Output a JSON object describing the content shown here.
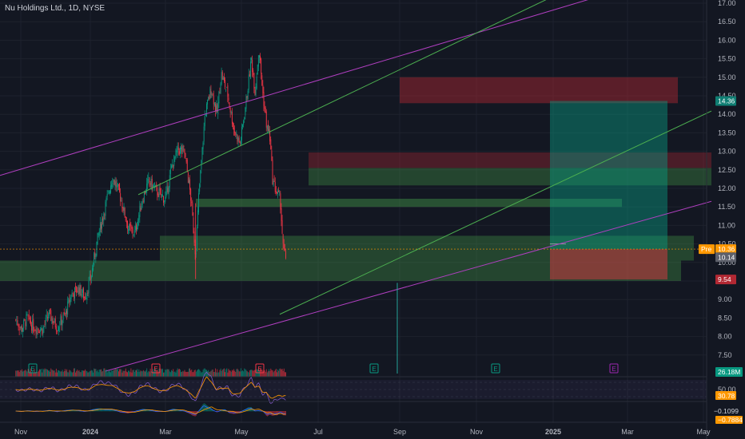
{
  "chart_data": {
    "type": "candlestick",
    "title": "Nu Holdings Ltd., 1D, NYSE",
    "x_ticks": [
      "Nov",
      "2024",
      "Mar",
      "May",
      "Jul",
      "Sep",
      "Nov",
      "2025",
      "Mar",
      "May"
    ],
    "y_ticks": [
      "17.00",
      "16.50",
      "16.00",
      "15.50",
      "15.00",
      "14.50",
      "14.00",
      "13.50",
      "13.00",
      "12.50",
      "12.00",
      "11.50",
      "11.00",
      "10.50",
      "10.00",
      "9.50",
      "9.00",
      "8.50",
      "8.00",
      "7.50"
    ],
    "ylim": [
      7.2,
      17.2
    ],
    "price_labels": [
      {
        "text": "14.36",
        "value": 14.36,
        "color": "#0f7e73"
      },
      {
        "text": "10.36",
        "value": 10.36,
        "color": "#ff9800",
        "prefix": "Pre"
      },
      {
        "text": "10.14",
        "value": 10.14,
        "color": "#5d606b"
      },
      {
        "text": "9.54",
        "value": 9.54,
        "color": "#b22833"
      }
    ],
    "anchors": [
      [
        "2023-10-23",
        8.45
      ],
      [
        "2023-11-01",
        8.2
      ],
      [
        "2023-11-10",
        8.5
      ],
      [
        "2023-11-20",
        8.25
      ],
      [
        "2023-12-05",
        8.2
      ],
      [
        "2023-12-15",
        8.6
      ],
      [
        "2023-12-28",
        8.25
      ],
      [
        "2024-01-10",
        8.6
      ],
      [
        "2024-01-20",
        9.15
      ],
      [
        "2024-02-01",
        9.3
      ],
      [
        "2024-02-10",
        9.05
      ],
      [
        "2024-02-20",
        9.6
      ],
      [
        "2024-03-01",
        10.6
      ],
      [
        "2024-03-12",
        11.4
      ],
      [
        "2024-03-25",
        12.3
      ],
      [
        "2024-04-05",
        11.9
      ],
      [
        "2024-04-20",
        10.9
      ],
      [
        "2024-04-30",
        10.8
      ],
      [
        "2024-05-12",
        11.7
      ],
      [
        "2024-05-22",
        12.2
      ],
      [
        "2024-06-05",
        11.9
      ],
      [
        "2024-06-18",
        11.7
      ],
      [
        "2024-06-28",
        12.6
      ],
      [
        "2024-07-08",
        13.05
      ],
      [
        "2024-07-18",
        13.0
      ],
      [
        "2024-07-28",
        11.8
      ],
      [
        "2024-08-05",
        10.2
      ],
      [
        "2024-08-10",
        11.8
      ],
      [
        "2024-08-20",
        14.0
      ],
      [
        "2024-08-30",
        14.7
      ],
      [
        "2024-09-08",
        14.0
      ],
      [
        "2024-09-15",
        15.1
      ],
      [
        "2024-09-25",
        14.55
      ],
      [
        "2024-10-05",
        13.6
      ],
      [
        "2024-10-15",
        13.2
      ],
      [
        "2024-10-25",
        14.4
      ],
      [
        "2024-11-02",
        15.5
      ],
      [
        "2024-11-08",
        14.6
      ],
      [
        "2024-11-14",
        15.8
      ],
      [
        "2024-11-20",
        14.6
      ],
      [
        "2024-11-27",
        13.6
      ],
      [
        "2024-12-01",
        13.5
      ],
      [
        "2024-12-06",
        12.2
      ],
      [
        "2024-12-12",
        11.9
      ],
      [
        "2024-12-18",
        11.7
      ],
      [
        "2024-12-23",
        10.3
      ],
      [
        "2024-12-27",
        10.14
      ]
    ],
    "series": [
      {
        "type": "volume",
        "last_label": "26.18M"
      },
      {
        "type": "rsi",
        "ticks": [
          "50.00",
          "30.00"
        ],
        "last_label": "30.78"
      },
      {
        "type": "macd",
        "labels": [
          "−0.1099",
          "−0.7884"
        ]
      }
    ],
    "colors": {
      "background": "#131722",
      "up": "#089981",
      "down": "#f23645",
      "trend_green": "#4caf50",
      "trend_magenta": "#b03fc0",
      "rsi": "#7e57c2",
      "signal": "#ff9800"
    }
  }
}
